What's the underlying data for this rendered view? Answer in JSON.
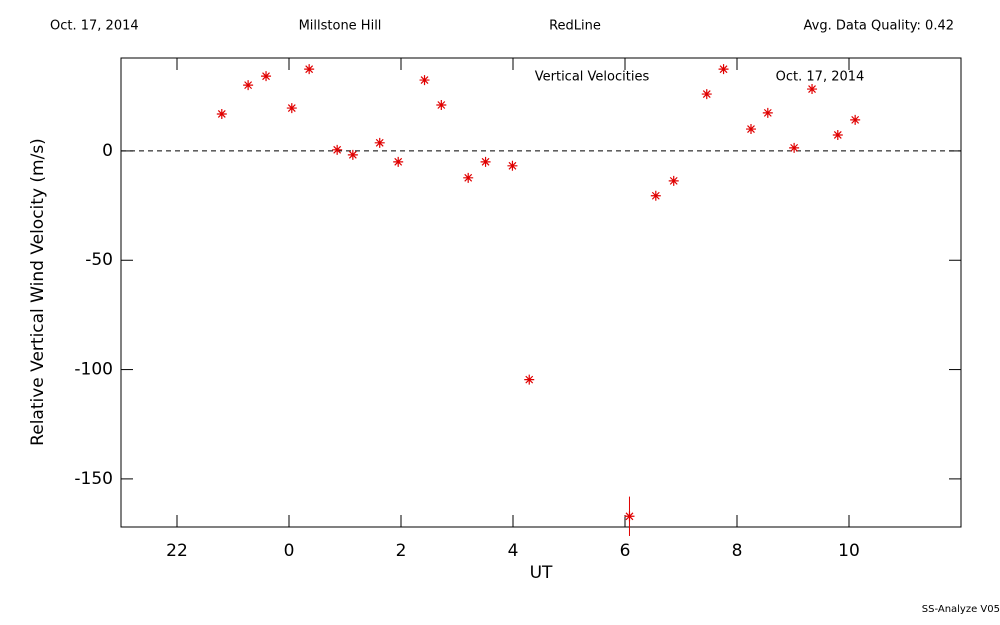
{
  "chart_data": {
    "type": "scatter",
    "header": [
      "Oct. 17, 2014",
      "Millstone Hill",
      "RedLine",
      "Avg. Data Quality: 0.42"
    ],
    "title": "Vertical Velocities",
    "subtitle": "Oct. 17, 2014",
    "x_label": "UT",
    "y_label": "Relative Vertical Wind Velocity (m/s)",
    "footer": "SS-Analyze V05",
    "xlim": [
      -3,
      12
    ],
    "ylim": [
      -172,
      42.5
    ],
    "xticks": [
      {
        "value": -2,
        "label": "22"
      },
      0,
      2,
      4,
      6,
      8,
      10
    ],
    "yticks": [
      -150,
      -100,
      -50,
      0
    ],
    "hline": 0,
    "series": [
      {
        "name": "Vertical Velocities",
        "color": "#e00000",
        "x": [
          -1.2,
          -0.73,
          -0.41,
          0.05,
          0.36,
          0.86,
          1.14,
          1.62,
          1.95,
          2.42,
          2.72,
          3.2,
          3.51,
          3.99,
          4.29,
          6.08,
          6.55,
          6.87,
          7.46,
          7.76,
          8.25,
          8.55,
          9.02,
          9.34,
          9.8,
          10.11
        ],
        "values": [
          16.9,
          30.1,
          34.2,
          19.6,
          37.4,
          0.5,
          -1.8,
          3.7,
          -5.0,
          32.4,
          21.0,
          -12.3,
          -5.0,
          -6.8,
          -104.6,
          -167.1,
          -20.5,
          -13.7,
          26.0,
          37.4,
          10.0,
          17.4,
          1.4,
          28.3,
          7.3,
          14.2
        ],
        "yerr": [
          null,
          null,
          null,
          null,
          null,
          null,
          null,
          null,
          null,
          null,
          null,
          null,
          null,
          null,
          null,
          9,
          null,
          null,
          null,
          null,
          null,
          null,
          null,
          null,
          null,
          null
        ]
      }
    ]
  }
}
